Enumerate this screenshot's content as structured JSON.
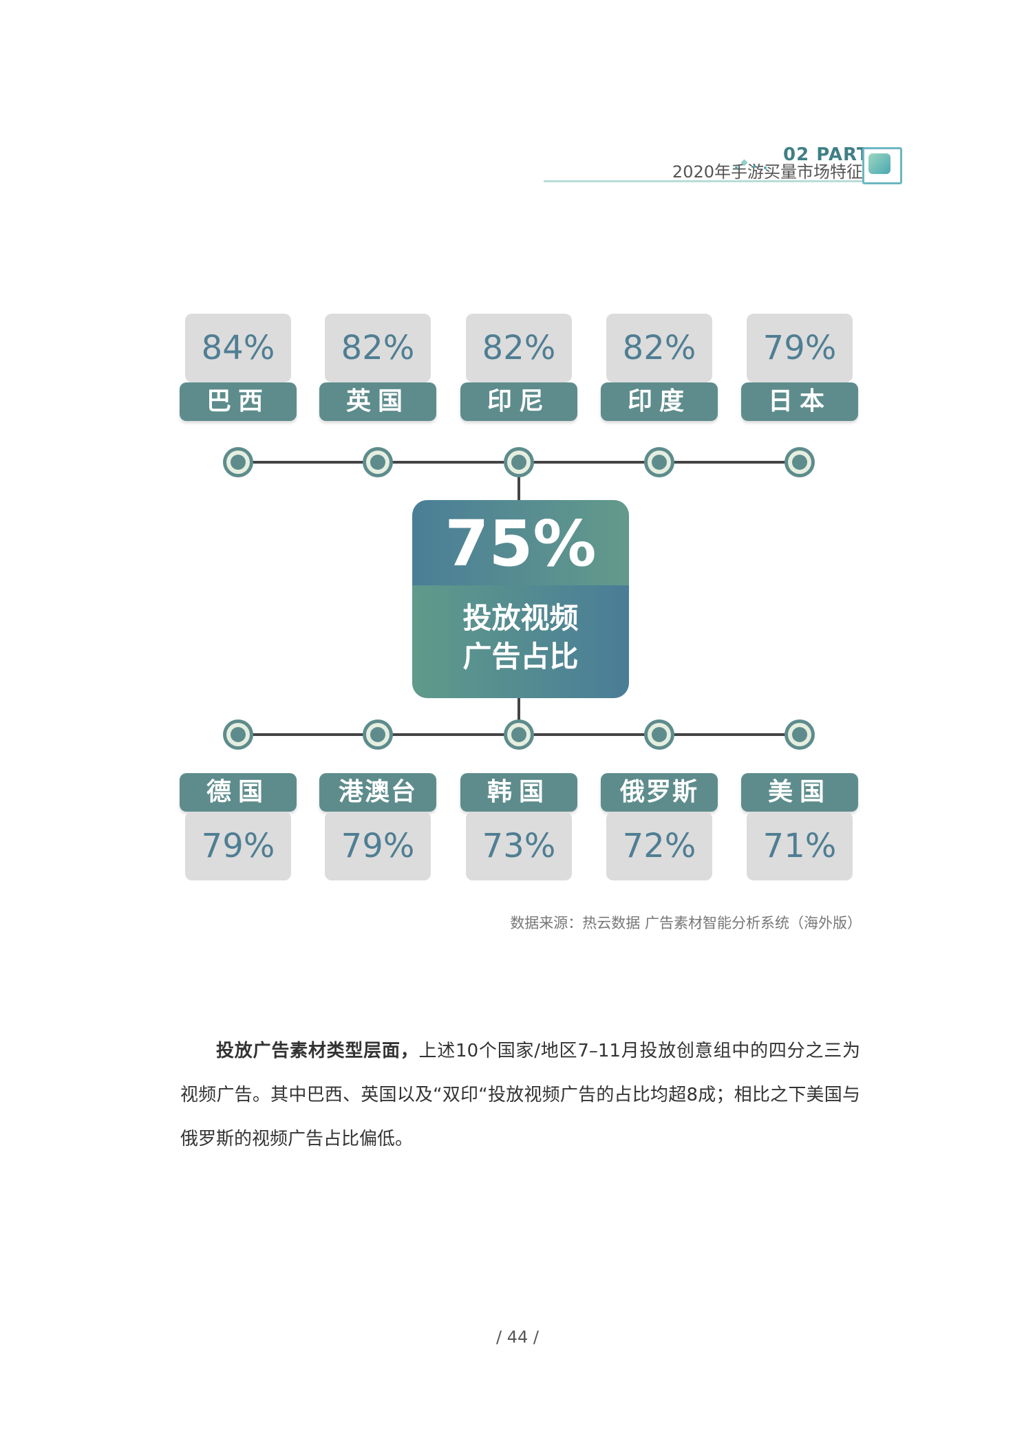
{
  "header": {
    "title": "2020年手游买量市场特征",
    "part": "02  PART"
  },
  "colors": {
    "tile_bg": "#dcdcdc",
    "tag_bg": "#5e8c8c",
    "value_text": "#4f7e93",
    "line": "#444444",
    "node_outer": "#5e8c8c",
    "node_ring": "#e6eee0",
    "node_center": "#5e8c8c"
  },
  "chart_data": {
    "type": "table",
    "center": {
      "value": "75%",
      "label_line1": "投放视频",
      "label_line2": "广告占比"
    },
    "top_row": [
      {
        "region": "巴西",
        "value": "84%"
      },
      {
        "region": "英国",
        "value": "82%"
      },
      {
        "region": "印尼",
        "value": "82%"
      },
      {
        "region": "印度",
        "value": "82%"
      },
      {
        "region": "日本",
        "value": "79%"
      }
    ],
    "bottom_row": [
      {
        "region": "德国",
        "value": "79%"
      },
      {
        "region": "港澳台",
        "value": "79%"
      },
      {
        "region": "韩国",
        "value": "73%"
      },
      {
        "region": "俄罗斯",
        "value": "72%"
      },
      {
        "region": "美国",
        "value": "71%"
      }
    ]
  },
  "source_note": "数据来源：热云数据 广告素材智能分析系统（海外版）",
  "body": {
    "lead_bold": "投放广告素材类型层面，",
    "text": "上述10个国家/地区7–11月投放创意组中的四分之三为视频广告。其中巴西、英国以及“双印“投放视频广告的占比均超8成；相比之下美国与俄罗斯的视频广告占比偏低。"
  },
  "page_number": "/ 44 /"
}
